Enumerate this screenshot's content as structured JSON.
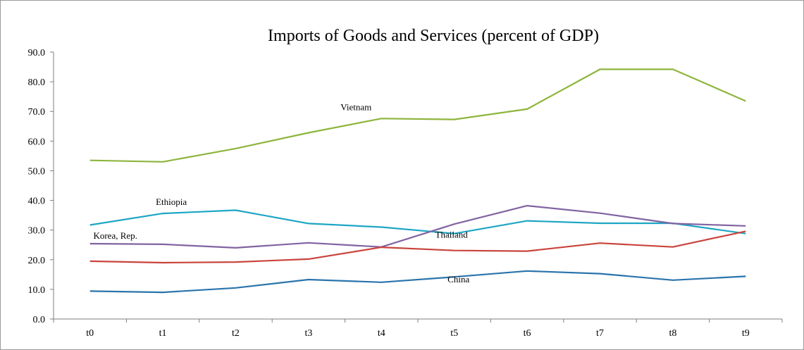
{
  "chart_data": {
    "type": "line",
    "title": "Imports of Goods and Services (percent of GDP)",
    "xlabel": "",
    "ylabel": "",
    "categories": [
      "t0",
      "t1",
      "t2",
      "t3",
      "t4",
      "t5",
      "t6",
      "t7",
      "t8",
      "t9"
    ],
    "ylim": [
      0,
      90
    ],
    "yticks": [
      "0.0",
      "10.0",
      "20.0",
      "30.0",
      "40.0",
      "50.0",
      "60.0",
      "70.0",
      "80.0",
      "90.0"
    ],
    "grid": false,
    "legend": "none",
    "series": [
      {
        "name": "Vietnam",
        "color": "#8db53c",
        "values": [
          53.5,
          53.0,
          57.5,
          62.8,
          67.6,
          67.3,
          70.8,
          84.2,
          84.2,
          73.5
        ]
      },
      {
        "name": "Ethiopia",
        "color": "#1ea6c4",
        "values": [
          31.7,
          35.6,
          36.7,
          32.2,
          31.0,
          28.8,
          33.1,
          32.3,
          32.3,
          28.8
        ]
      },
      {
        "name": "Korea, Rep.",
        "color": "#8163a2",
        "values": [
          25.4,
          25.2,
          24.0,
          25.7,
          24.3,
          32.0,
          38.2,
          35.7,
          32.2,
          31.4
        ]
      },
      {
        "name": "Thailand",
        "color": "#c9443c",
        "values": [
          19.5,
          19.0,
          19.2,
          20.2,
          24.2,
          23.1,
          22.9,
          25.6,
          24.3,
          29.6
        ]
      },
      {
        "name": "China",
        "color": "#2a74ac",
        "values": [
          9.4,
          9.0,
          10.5,
          13.3,
          12.4,
          14.2,
          16.2,
          15.3,
          13.1,
          14.4
        ]
      }
    ]
  }
}
